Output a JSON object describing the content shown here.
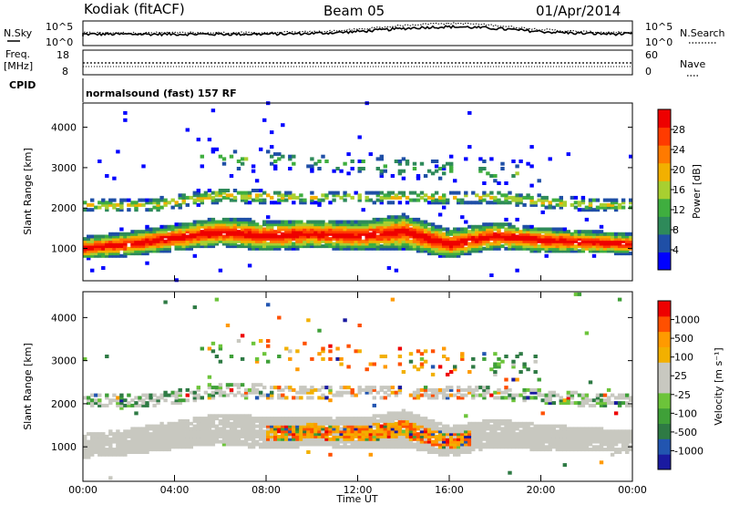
{
  "chart_data": [
    {
      "type": "line",
      "panel": "header",
      "title_left": "Kodiak (fitACF)",
      "title_center": "Beam 05",
      "title_right": "01/Apr/2014",
      "left_label": "N.Sky",
      "right_label": "N.Search",
      "left_ticks": [
        "10^5",
        "10^0"
      ],
      "right_ticks": [
        "10^5",
        "10^0"
      ]
    },
    {
      "type": "line",
      "panel": "frequency",
      "left_label_1": "Freq.",
      "left_label_2": "[MHz]",
      "right_label": "Nave",
      "left_ticks": [
        "18",
        "8"
      ],
      "right_ticks": [
        "60",
        "0"
      ],
      "cpid_label": "CPID",
      "cpid_text": "normalsound (fast) 157 RF"
    },
    {
      "type": "heatmap",
      "panel": "power",
      "ylabel": "Slant Range [km]",
      "yticks": [
        "1000",
        "2000",
        "3000",
        "4000"
      ],
      "ylim": [
        200,
        4600
      ],
      "colorbar_label": "Power [dB]",
      "colorbar_ticks": [
        "4",
        "8",
        "12",
        "16",
        "20",
        "24",
        "28"
      ],
      "colors": [
        "#0000ff",
        "#1f4fa6",
        "#2e8a5a",
        "#3fae3f",
        "#a8cf30",
        "#f2b000",
        "#ff7a00",
        "#ff3b00",
        "#ee0000"
      ],
      "bands": [
        {
          "name": "main",
          "t": [
            0,
            2,
            4,
            6,
            8,
            10,
            12,
            14,
            16,
            18,
            20,
            22,
            24
          ],
          "center": [
            1000,
            1100,
            1250,
            1400,
            1300,
            1350,
            1300,
            1400,
            1100,
            1300,
            1200,
            1150,
            1100
          ],
          "width": [
            550,
            600,
            650,
            700,
            750,
            700,
            700,
            850,
            700,
            650,
            600,
            550,
            500
          ]
        },
        {
          "name": "upper",
          "t": [
            0,
            3,
            6,
            9,
            12,
            15,
            18,
            21,
            24
          ],
          "center": [
            2050,
            2050,
            2300,
            2250,
            2250,
            2250,
            2250,
            2100,
            2050
          ],
          "width": [
            300,
            300,
            350,
            280,
            250,
            300,
            320,
            300,
            300
          ]
        },
        {
          "name": "high",
          "t": [
            5,
            8,
            11,
            14,
            17,
            20
          ],
          "center": [
            3200,
            3200,
            3100,
            3000,
            2900,
            2800
          ],
          "width": [
            600,
            500,
            500,
            600,
            700,
            600
          ]
        }
      ]
    },
    {
      "type": "heatmap",
      "panel": "velocity",
      "ylabel": "Slant Range [km]",
      "yticks": [
        "1000",
        "2000",
        "3000",
        "4000"
      ],
      "ylim": [
        200,
        4600
      ],
      "xlabel": "Time UT",
      "xticks": [
        "00:00",
        "04:00",
        "08:00",
        "12:00",
        "16:00",
        "20:00",
        "00:00"
      ],
      "xlim": [
        0,
        24
      ],
      "colorbar_label": "Velocity [m s⁻¹]",
      "colorbar_ticks": [
        "1000",
        "500",
        "100",
        "25",
        "-25",
        "-100",
        "-500",
        "-1000"
      ],
      "colors": [
        "#1a1aa0",
        "#2255b0",
        "#2e7a44",
        "#3fa038",
        "#6cc43a",
        "#c8c8c0",
        "#c8c8c0",
        "#f2b000",
        "#ff9a00",
        "#ff5000",
        "#ee0000"
      ],
      "ground_scatter_color": "#c8c8c0"
    }
  ]
}
